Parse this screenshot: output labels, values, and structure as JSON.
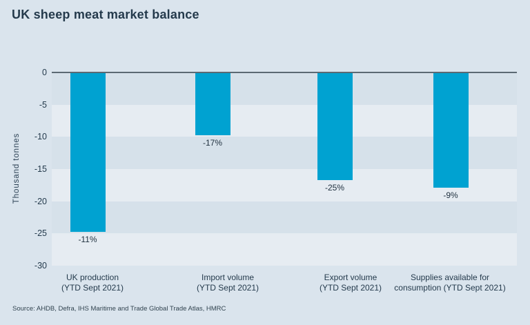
{
  "page": {
    "title": "UK sheep meat market balance",
    "source": "Source: AHDB, Defra, IHS Maritime and Trade Global Trade Atlas, HMRC"
  },
  "chart_data": {
    "type": "bar",
    "title": "UK sheep meat market balance",
    "ylabel": "Thousand tonnes",
    "xlabel": "",
    "ylim": [
      -30,
      0
    ],
    "yticks": [
      0,
      -5,
      -10,
      -15,
      -20,
      -25,
      -30
    ],
    "grid": "horizontal striped bands every 5 units, no gridlines",
    "legend_position": "none",
    "categories": [
      "UK production (YTD Sept 2021)",
      "Import volume (YTD Sept 2021)",
      "Export volume (YTD Sept 2021)",
      "Supplies available for consumption (YTD Sept 2021)"
    ],
    "category_lines": [
      [
        "UK production",
        "(YTD Sept 2021)"
      ],
      [
        "Import volume",
        "(YTD Sept 2021)"
      ],
      [
        "Export volume",
        "(YTD Sept 2021)"
      ],
      [
        "Supplies available for",
        "consumption (YTD Sept 2021)"
      ]
    ],
    "values": [
      -24.8,
      -9.8,
      -16.7,
      -17.9
    ],
    "bar_labels": [
      "-11%",
      "-17%",
      "-25%",
      "-9%"
    ],
    "source": "Source: AHDB, Defra, IHS Maritime and Trade Global Trade Atlas, HMRC",
    "colors": {
      "bar": "#00a2d1",
      "background": "#dae4ed",
      "band_dark": "#d6e1ea",
      "band_light": "#e6ecf2",
      "axis_line": "#5b6973",
      "text": "#243a4c"
    }
  }
}
